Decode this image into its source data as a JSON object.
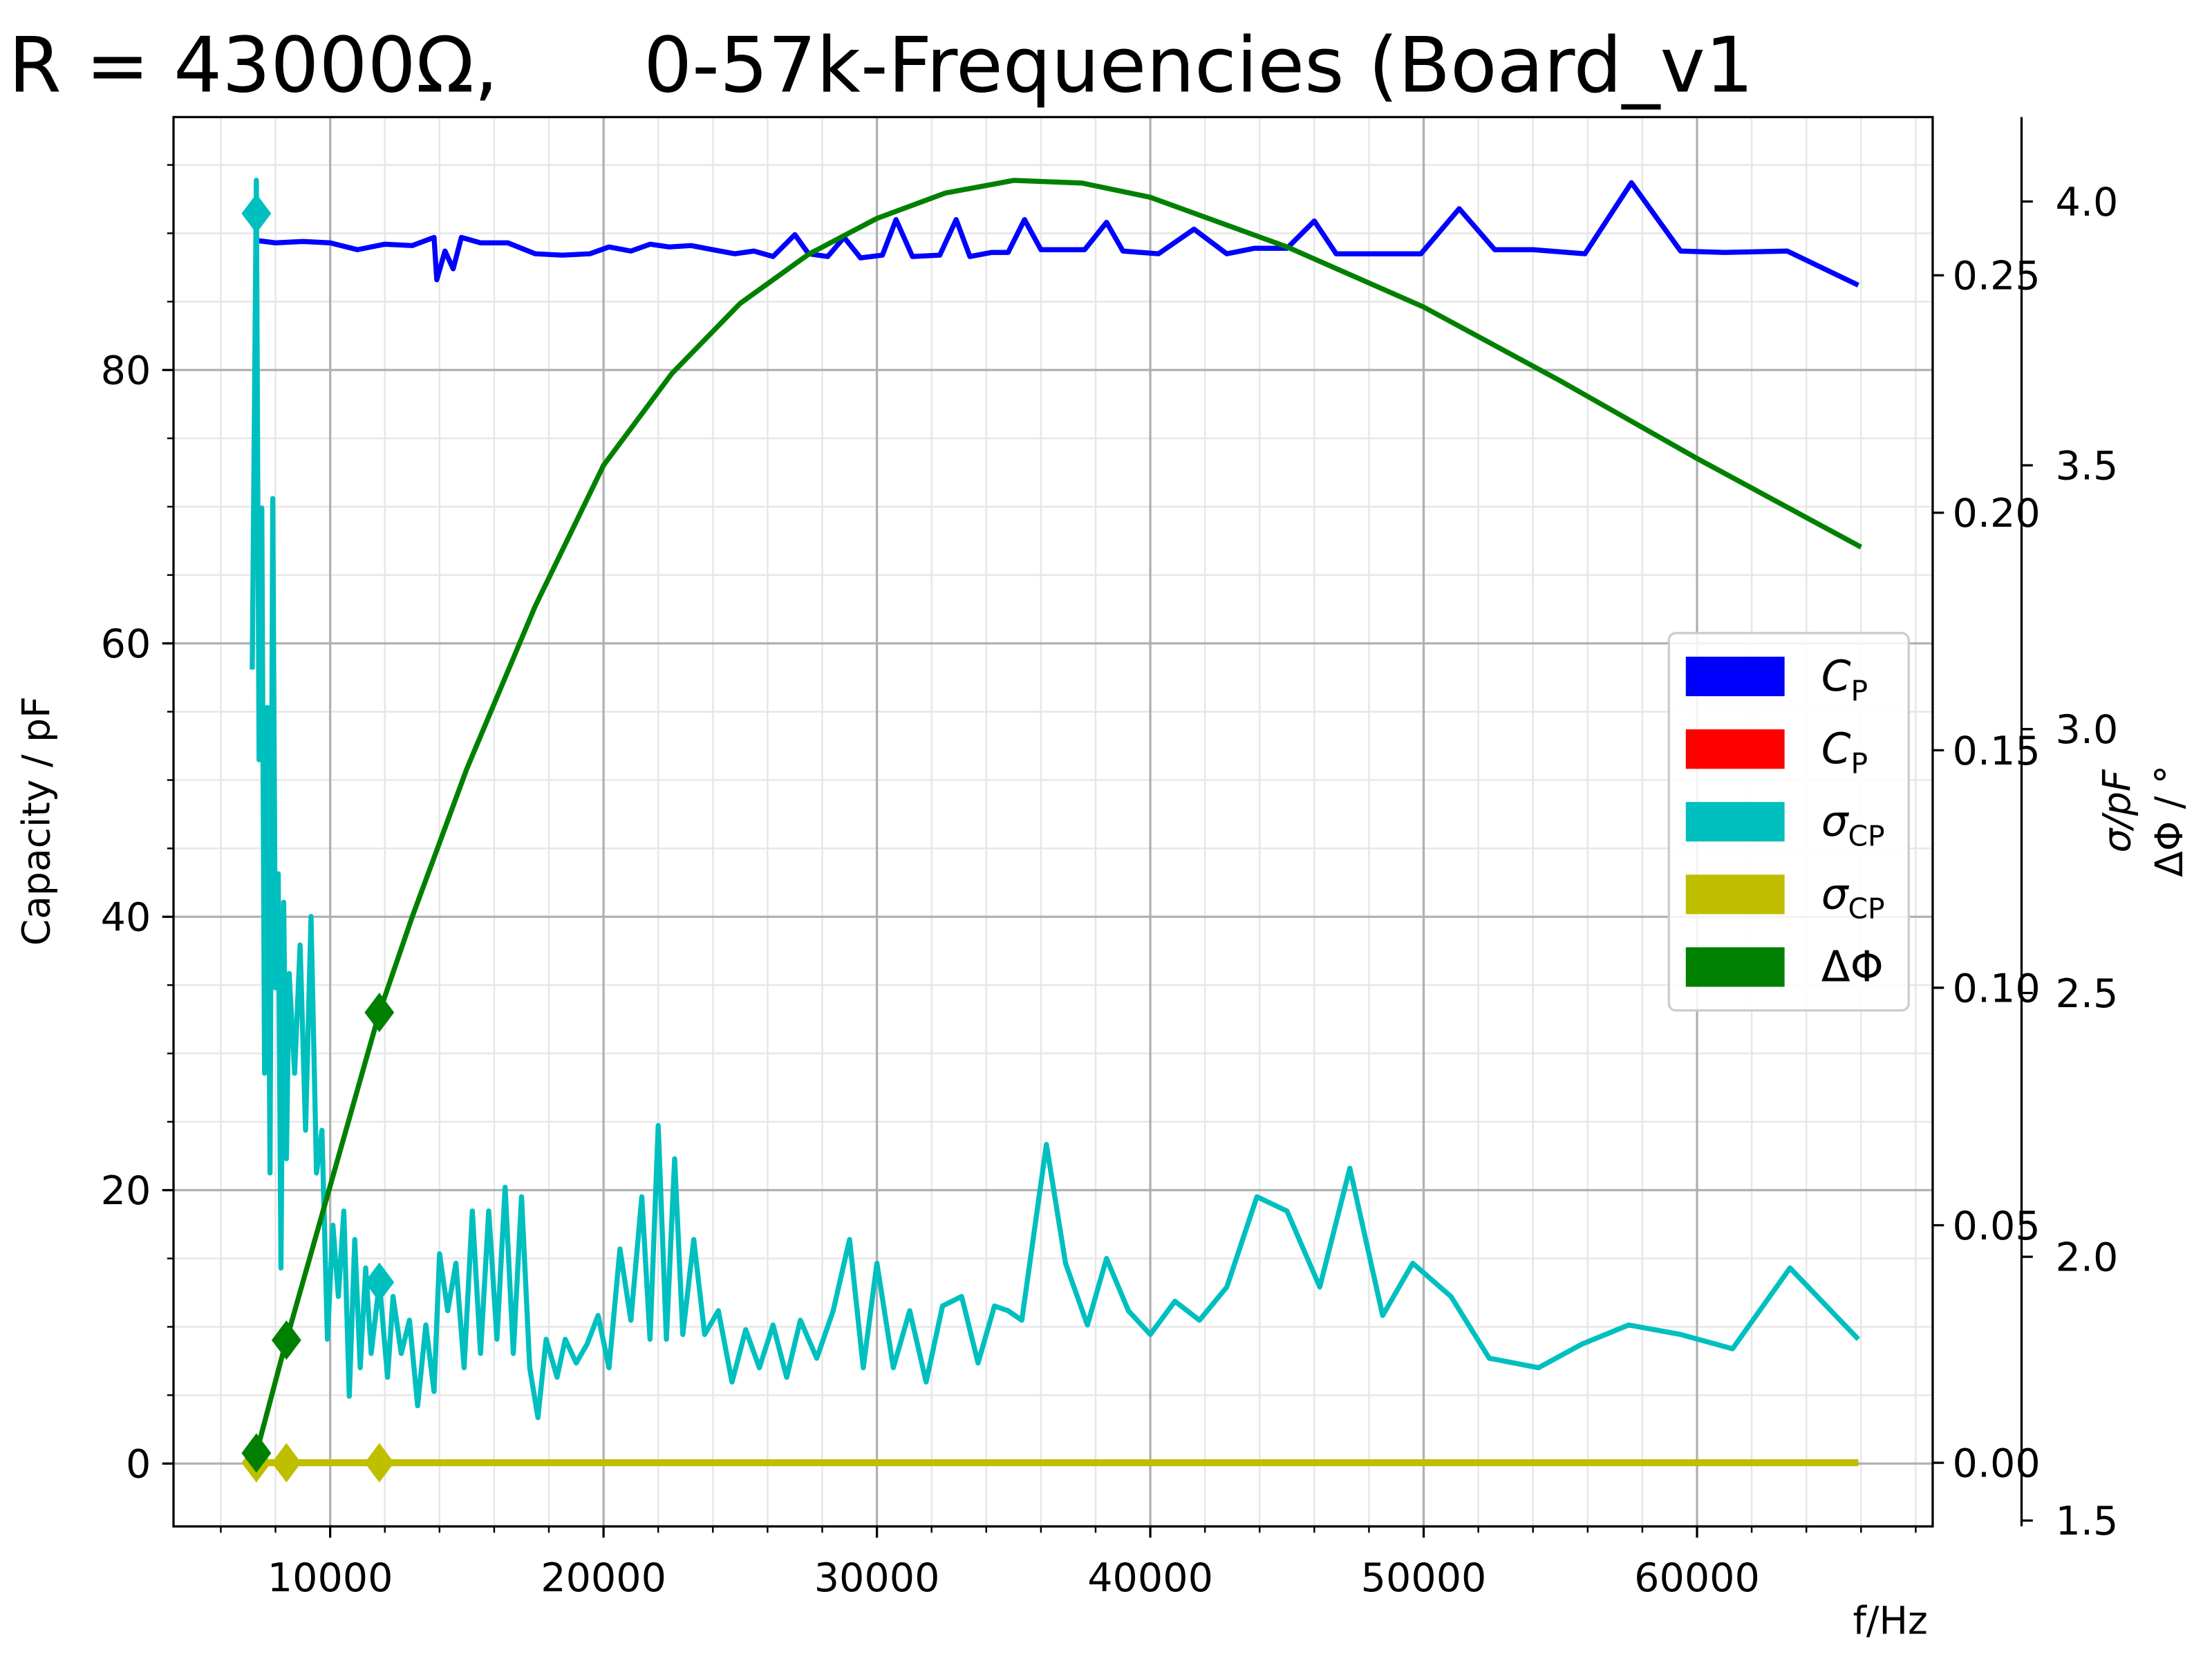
{
  "chart_data": {
    "type": "line",
    "title": "R = 43000Ω,      0-57k-Frequencies (Board_v1",
    "x_label": "f/Hz",
    "y_label": "Capacity / pF",
    "y2_label": "σ/pF",
    "y3_label": "ΔΦ / °",
    "xlim": [
      4270,
      68620
    ],
    "ylim": [
      -4.6,
      98.5
    ],
    "y2lim": [
      -0.0134,
      0.2833
    ],
    "y3lim": [
      1.489,
      4.16
    ],
    "xticks": [
      10000,
      20000,
      30000,
      40000,
      50000,
      60000
    ],
    "xminorticks": [
      6000,
      8000,
      12000,
      14000,
      16000,
      18000,
      22000,
      24000,
      26000,
      28000,
      32000,
      34000,
      36000,
      38000,
      42000,
      44000,
      46000,
      48000,
      52000,
      54000,
      56000,
      58000,
      62000,
      64000,
      66000,
      68000
    ],
    "yticks": [
      0,
      20,
      40,
      60,
      80
    ],
    "yminorticks": [
      5,
      10,
      15,
      25,
      30,
      35,
      45,
      50,
      55,
      65,
      70,
      75,
      85,
      90,
      95
    ],
    "y2ticks": [
      {
        "value": 0,
        "label": "0.00"
      },
      {
        "value": 0.05,
        "label": "0.05"
      },
      {
        "value": 0.1,
        "label": "0.10"
      },
      {
        "value": 0.15,
        "label": "0.15"
      },
      {
        "value": 0.2,
        "label": "0.20"
      },
      {
        "value": 0.25,
        "label": "0.25"
      }
    ],
    "y3ticks": [
      1.5,
      {
        "value": 2,
        "label": "2.0"
      },
      2.5,
      {
        "value": 3,
        "label": "3.0"
      },
      3.5,
      {
        "value": 4,
        "label": "4.0"
      }
    ],
    "grid": true,
    "minor_grid": true,
    "legend": "center right",
    "series": [
      {
        "name": "CP",
        "color": "#0000ff",
        "axis": "y",
        "x": [
          7200,
          8000,
          9000,
          10000,
          11000,
          12000,
          13000,
          13800,
          13900,
          14200,
          14500,
          14800,
          15500,
          16500,
          17500,
          18500,
          19500,
          20200,
          21000,
          21700,
          22400,
          23200,
          24000,
          24800,
          25500,
          26200,
          27000,
          27500,
          28200,
          28800,
          29400,
          30200,
          30700,
          31300,
          32300,
          32900,
          33400,
          34200,
          34800,
          35400,
          36000,
          37600,
          38400,
          39000,
          40300,
          41600,
          42800,
          43800,
          45000,
          46000,
          46800,
          48100,
          49900,
          51300,
          52600,
          54000,
          55900,
          57600,
          59400,
          61000,
          63300,
          65900
        ],
        "values": [
          89.5,
          89.3,
          89.4,
          89.3,
          88.8,
          89.2,
          89.1,
          89.7,
          86.6,
          88.7,
          87.4,
          89.7,
          89.3,
          89.3,
          88.5,
          88.4,
          88.5,
          89.0,
          88.7,
          89.2,
          89.0,
          89.1,
          88.8,
          88.5,
          88.7,
          88.3,
          89.9,
          88.5,
          88.3,
          89.7,
          88.2,
          88.4,
          91.0,
          88.3,
          88.4,
          91.0,
          88.3,
          88.6,
          88.6,
          91.0,
          88.8,
          88.8,
          90.8,
          88.7,
          88.5,
          90.3,
          88.5,
          88.9,
          88.9,
          90.9,
          88.5,
          88.5,
          88.5,
          91.8,
          88.8,
          88.8,
          88.5,
          93.7,
          88.7,
          88.6,
          88.7,
          86.2
        ]
      },
      {
        "name": "CP",
        "color": "#ff0000",
        "axis": "y",
        "x": [
          7300,
          8400,
          11800,
          20000,
          30000,
          40000,
          50000,
          60000,
          65900
        ],
        "values": [
          0,
          0,
          0,
          0,
          0,
          0,
          0,
          0,
          0
        ]
      },
      {
        "name": "σCP",
        "color": "#00bfbf",
        "axis": "y2",
        "x": [
          7150,
          7300,
          7400,
          7500,
          7600,
          7700,
          7800,
          7900,
          8000,
          8100,
          8200,
          8300,
          8400,
          8500,
          8700,
          8900,
          9100,
          9300,
          9500,
          9700,
          9900,
          10100,
          10300,
          10500,
          10700,
          10900,
          11100,
          11300,
          11500,
          11800,
          12100,
          12300,
          12600,
          12900,
          13200,
          13500,
          13800,
          14000,
          14300,
          14600,
          14900,
          15200,
          15500,
          15800,
          16100,
          16400,
          16700,
          17000,
          17300,
          17600,
          17900,
          18300,
          18600,
          19000,
          19400,
          19800,
          20200,
          20600,
          21000,
          21400,
          21700,
          22000,
          22300,
          22600,
          22900,
          23300,
          23700,
          24200,
          24700,
          25200,
          25700,
          26200,
          26700,
          27200,
          27800,
          28400,
          29000,
          29500,
          30000,
          30600,
          31200,
          31800,
          32400,
          33100,
          33700,
          34300,
          34800,
          35300,
          36200,
          36900,
          37700,
          38400,
          39200,
          40000,
          40900,
          41800,
          42800,
          43900,
          45000,
          46200,
          47300,
          48500,
          49600,
          51000,
          52400,
          54200,
          55800,
          57500,
          59400,
          61300,
          63400,
          65900
        ],
        "values": [
          0.167,
          0.27,
          0.148,
          0.201,
          0.082,
          0.159,
          0.061,
          0.203,
          0.1,
          0.124,
          0.041,
          0.118,
          0.064,
          0.103,
          0.082,
          0.109,
          0.07,
          0.115,
          0.061,
          0.07,
          0.026,
          0.05,
          0.035,
          0.053,
          0.014,
          0.047,
          0.02,
          0.041,
          0.023,
          0.038,
          0.018,
          0.035,
          0.023,
          0.03,
          0.012,
          0.029,
          0.015,
          0.044,
          0.032,
          0.042,
          0.02,
          0.053,
          0.023,
          0.053,
          0.026,
          0.058,
          0.023,
          0.056,
          0.02,
          0.0095,
          0.026,
          0.018,
          0.026,
          0.021,
          0.025,
          0.031,
          0.02,
          0.045,
          0.03,
          0.056,
          0.026,
          0.071,
          0.026,
          0.064,
          0.027,
          0.047,
          0.027,
          0.032,
          0.017,
          0.028,
          0.02,
          0.029,
          0.018,
          0.03,
          0.022,
          0.032,
          0.047,
          0.02,
          0.042,
          0.02,
          0.032,
          0.017,
          0.033,
          0.035,
          0.021,
          0.033,
          0.032,
          0.03,
          0.067,
          0.042,
          0.029,
          0.043,
          0.032,
          0.027,
          0.034,
          0.03,
          0.037,
          0.056,
          0.053,
          0.037,
          0.062,
          0.031,
          0.042,
          0.035,
          0.022,
          0.02,
          0.025,
          0.029,
          0.027,
          0.024,
          0.041,
          0.026
        ],
        "points": {
          "x": [
            7300,
            11800
          ],
          "values": [
            0.263,
            0.038
          ]
        }
      },
      {
        "name": "σCP",
        "color": "#bfbf00",
        "axis": "y2",
        "x": [
          7300,
          8400,
          11800,
          20000,
          30000,
          40000,
          50000,
          60000,
          65900
        ],
        "values": [
          0,
          0,
          0,
          0,
          0,
          0,
          0,
          0,
          0
        ],
        "points": {
          "x": [
            7300,
            8400,
            11800
          ],
          "values": [
            0,
            0,
            0
          ]
        }
      },
      {
        "name": "ΔΦ",
        "color": "#008000",
        "axis": "y3",
        "x": [
          7300,
          8400,
          11800,
          13000,
          15000,
          17500,
          20000,
          22500,
          25000,
          27500,
          30000,
          32500,
          35000,
          37500,
          40000,
          45000,
          50000,
          55000,
          60000,
          66000
        ],
        "values": [
          1.628,
          1.842,
          2.463,
          2.644,
          2.925,
          3.233,
          3.5,
          3.674,
          3.807,
          3.9,
          3.968,
          4.016,
          4.04,
          4.035,
          4.008,
          3.914,
          3.8,
          3.66,
          3.513,
          3.345
        ],
        "points": {
          "x": [
            7300,
            8400,
            11800
          ],
          "values": [
            1.628,
            1.842,
            2.463
          ]
        }
      }
    ]
  }
}
